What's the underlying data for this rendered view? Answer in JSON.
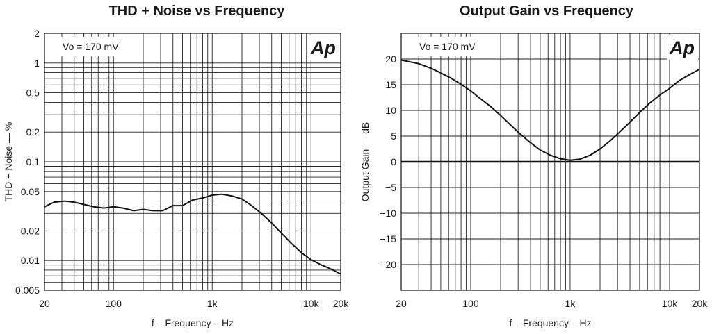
{
  "chart_data": [
    {
      "type": "line",
      "title": "THD + Noise vs Frequency",
      "xlabel": "f – Frequency – Hz",
      "ylabel": "THD + Noise — %",
      "x_scale": "log",
      "y_scale": "log",
      "xlim": [
        20,
        20000
      ],
      "ylim": [
        0.005,
        2
      ],
      "x_tick_labels": [
        {
          "value": 20,
          "label": "20"
        },
        {
          "value": 100,
          "label": "100"
        },
        {
          "value": 1000,
          "label": "1k"
        },
        {
          "value": 10000,
          "label": "10k"
        },
        {
          "value": 20000,
          "label": "20k"
        }
      ],
      "y_tick_labels": [
        {
          "value": 2,
          "label": "2"
        },
        {
          "value": 1,
          "label": "1"
        },
        {
          "value": 0.5,
          "label": "0.5"
        },
        {
          "value": 0.2,
          "label": "0.2"
        },
        {
          "value": 0.1,
          "label": "0.1"
        },
        {
          "value": 0.05,
          "label": "0.05"
        },
        {
          "value": 0.02,
          "label": "0.02"
        },
        {
          "value": 0.01,
          "label": "0.01"
        },
        {
          "value": 0.005,
          "label": "0.005"
        }
      ],
      "y_gridlines": [
        0.005,
        0.006,
        0.007,
        0.008,
        0.009,
        0.01,
        0.02,
        0.03,
        0.04,
        0.05,
        0.06,
        0.07,
        0.08,
        0.09,
        0.1,
        0.2,
        0.3,
        0.4,
        0.5,
        0.6,
        0.7,
        0.8,
        0.9,
        1,
        2
      ],
      "grid": true,
      "annotation": "Vo = 170 mV",
      "logo": "Ap",
      "series": [
        {
          "x": [
            20,
            25,
            32,
            40,
            50,
            63,
            80,
            100,
            125,
            160,
            200,
            250,
            315,
            400,
            500,
            630,
            800,
            1000,
            1250,
            1600,
            2000,
            2500,
            3150,
            4000,
            5000,
            6300,
            8000,
            10000,
            12500,
            16000,
            20000
          ],
          "y": [
            0.035,
            0.039,
            0.04,
            0.039,
            0.037,
            0.035,
            0.034,
            0.035,
            0.034,
            0.032,
            0.033,
            0.032,
            0.032,
            0.036,
            0.036,
            0.041,
            0.043,
            0.046,
            0.047,
            0.045,
            0.042,
            0.036,
            0.03,
            0.024,
            0.019,
            0.015,
            0.012,
            0.0102,
            0.0091,
            0.0082,
            0.0073
          ]
        }
      ]
    },
    {
      "type": "line",
      "title": "Output Gain vs Frequency",
      "xlabel": "f – Frequency – Hz",
      "ylabel": "Output Gain — dB",
      "x_scale": "log",
      "y_scale": "linear",
      "xlim": [
        20,
        20000
      ],
      "ylim": [
        -25,
        25
      ],
      "x_tick_labels": [
        {
          "value": 20,
          "label": "20"
        },
        {
          "value": 100,
          "label": "100"
        },
        {
          "value": 1000,
          "label": "1k"
        },
        {
          "value": 10000,
          "label": "10k"
        },
        {
          "value": 20000,
          "label": "20k"
        }
      ],
      "y_tick_labels": [
        {
          "value": 20,
          "label": "20"
        },
        {
          "value": 15,
          "label": "15"
        },
        {
          "value": 10,
          "label": "10"
        },
        {
          "value": 5,
          "label": "5"
        },
        {
          "value": 0,
          "label": "0"
        },
        {
          "value": -5,
          "label": "−5"
        },
        {
          "value": -10,
          "label": "−10"
        },
        {
          "value": -15,
          "label": "−15"
        },
        {
          "value": -20,
          "label": "−20"
        }
      ],
      "y_gridlines": [
        25,
        20,
        15,
        10,
        5,
        0,
        -5,
        -10,
        -15,
        -20,
        -25
      ],
      "reference_line_y": 0,
      "grid": true,
      "annotation": "Vo = 170 mV",
      "logo": "Ap",
      "series": [
        {
          "x": [
            20,
            30,
            40,
            50,
            63,
            80,
            100,
            125,
            160,
            200,
            250,
            315,
            400,
            500,
            630,
            800,
            1000,
            1250,
            1600,
            2000,
            2500,
            3150,
            4000,
            5000,
            6300,
            8000,
            10000,
            12500,
            16000,
            20000
          ],
          "y": [
            19.8,
            19.1,
            18.2,
            17.3,
            16.3,
            15.1,
            13.8,
            12.3,
            10.7,
            9.0,
            7.2,
            5.4,
            3.7,
            2.3,
            1.3,
            0.6,
            0.3,
            0.5,
            1.3,
            2.5,
            4.0,
            5.8,
            7.7,
            9.6,
            11.4,
            13.0,
            14.3,
            15.8,
            17.0,
            18.0
          ]
        }
      ]
    }
  ]
}
